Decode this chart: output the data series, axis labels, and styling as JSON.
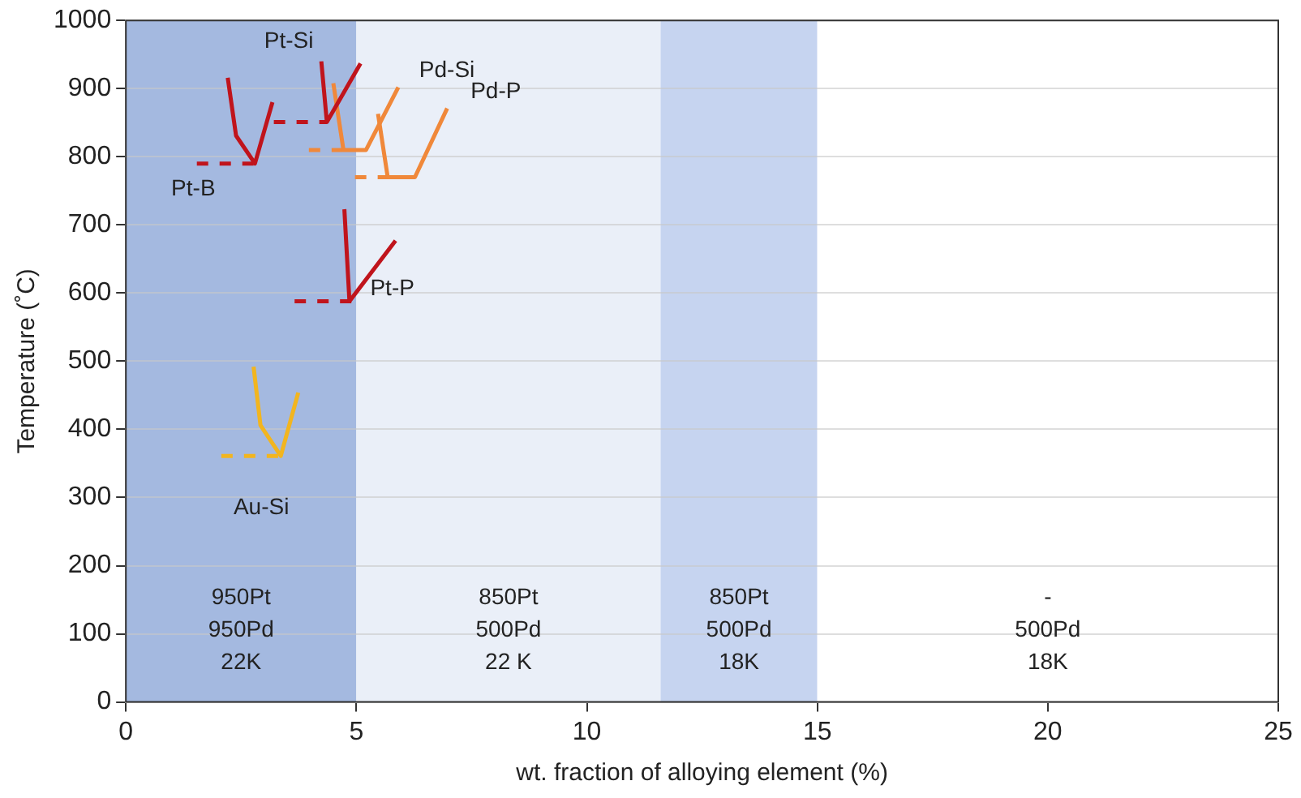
{
  "chart_data": {
    "type": "line",
    "xlabel": "wt. fraction of alloying element (%)",
    "ylabel": "Temperature (˚C)",
    "xlim": [
      0,
      25
    ],
    "xticks": [
      0,
      5,
      10,
      15,
      20,
      25
    ],
    "ylim": [
      0,
      1000
    ],
    "yticks": [
      0,
      100,
      200,
      300,
      400,
      500,
      600,
      700,
      800,
      900,
      1000
    ],
    "grid": "y",
    "legend": false,
    "marker": "none",
    "bands": [
      {
        "axis": "x",
        "from": 0,
        "to": 5,
        "color": "#a4b9e0",
        "label": "950Pt\n950Pd\n22K"
      },
      {
        "axis": "x",
        "from": 5,
        "to": 11.6,
        "color": "#eaeff8",
        "label": "850Pt\n500Pd\n22 K"
      },
      {
        "axis": "x",
        "from": 11.6,
        "to": 15,
        "color": "#c6d4f0",
        "label": "850Pt\n500Pd\n18K"
      },
      {
        "axis": "x",
        "from": 15,
        "to": 25,
        "color": "#ffffff",
        "label": "-\n500Pd\n18K"
      }
    ],
    "series": [
      {
        "name": "Pt-B",
        "color": "#c0141c",
        "x": [
          2.21,
          2.39,
          2.8,
          3.18
        ],
        "values": [
          916,
          831,
          790,
          880
        ],
        "line_style": "solid"
      },
      {
        "color": "#c0141c",
        "x": [
          1.54,
          2.8
        ],
        "values": [
          790,
          790
        ],
        "line_style": "dashed"
      },
      {
        "name": "Pt-Si",
        "color": "#c0141c",
        "x": [
          4.24,
          4.36,
          5.09
        ],
        "values": [
          940,
          851,
          937
        ],
        "line_style": "solid"
      },
      {
        "color": "#c0141c",
        "x": [
          3.21,
          4.36
        ],
        "values": [
          851,
          851
        ],
        "line_style": "dashed"
      },
      {
        "name": "Pd-Si",
        "color": "#f0883a",
        "x": [
          4.5,
          4.72,
          5.21,
          5.91
        ],
        "values": [
          908,
          810,
          810,
          902
        ],
        "line_style": "solid"
      },
      {
        "color": "#f0883a",
        "x": [
          3.97,
          4.72
        ],
        "values": [
          810,
          810
        ],
        "line_style": "dashed"
      },
      {
        "name": "Pd-P",
        "color": "#f0883a",
        "x": [
          5.47,
          5.68,
          6.27,
          6.97
        ],
        "values": [
          863,
          770,
          770,
          871
        ],
        "line_style": "solid"
      },
      {
        "color": "#f0883a",
        "x": [
          4.97,
          5.68
        ],
        "values": [
          770,
          770
        ],
        "line_style": "dashed"
      },
      {
        "name": "Pt-P",
        "color": "#c0141c",
        "x": [
          4.74,
          4.85,
          5.85
        ],
        "values": [
          723,
          588,
          677
        ],
        "line_style": "solid"
      },
      {
        "color": "#c0141c",
        "x": [
          3.66,
          4.95
        ],
        "values": [
          588,
          588
        ],
        "line_style": "dashed"
      },
      {
        "name": "Au-Si",
        "color": "#f2b51f",
        "x": [
          2.77,
          2.92,
          3.36,
          3.74
        ],
        "values": [
          492,
          406,
          361,
          454
        ],
        "line_style": "solid"
      },
      {
        "color": "#f2b51f",
        "x": [
          2.07,
          3.36
        ],
        "values": [
          361,
          361
        ],
        "line_style": "dashed"
      }
    ]
  }
}
